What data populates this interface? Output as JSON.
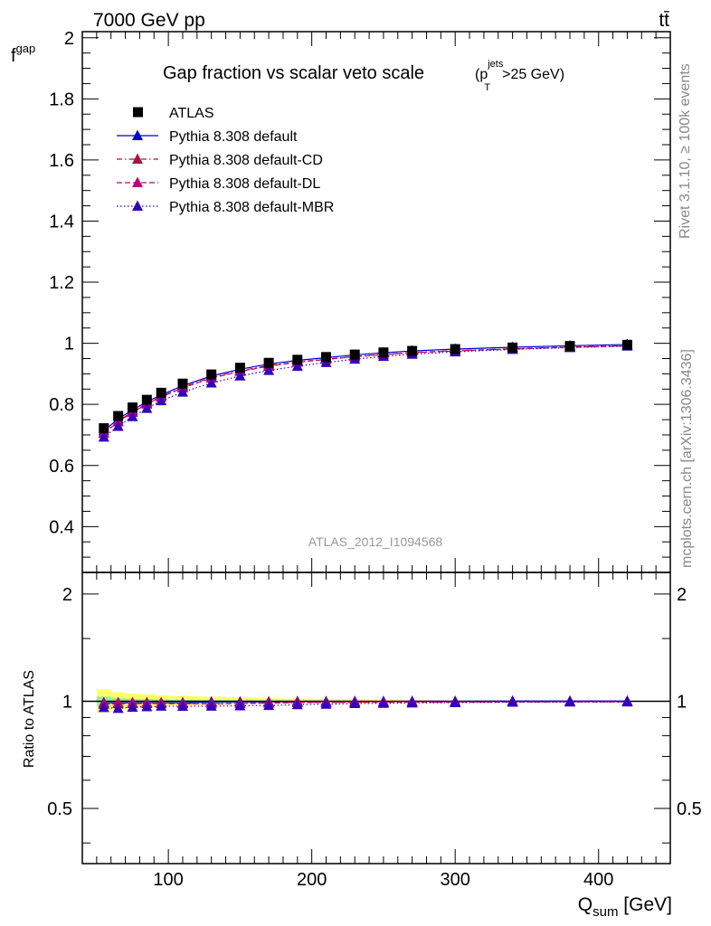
{
  "header": {
    "energy_label": "7000 GeV pp",
    "process_label": "tt̄"
  },
  "side_text": {
    "rivet": "Rivet 3.1.10, ≥ 100k events",
    "source": "mcplots.cern.ch [arXiv:1306.3436]"
  },
  "chart_data": [
    {
      "type": "scatter",
      "panel": "main",
      "title": "Gap fraction vs scalar veto scale",
      "title_suffix": {
        "p": "p",
        "sup": "jets",
        "sub": "T",
        "rest": ">25 GeV)",
        "open": "("
      },
      "ylabel": {
        "main": "f",
        "sub": "gap"
      },
      "xlim": [
        40,
        450
      ],
      "ylim": [
        0.25,
        2.02
      ],
      "yticks": [
        0.4,
        0.6,
        0.8,
        1,
        1.2,
        1.4,
        1.6,
        1.8,
        2
      ],
      "ytick_labels": [
        "0.4",
        "0.6",
        "0.8",
        "1",
        "1.2",
        "1.4",
        "1.6",
        "1.8",
        "2"
      ],
      "watermark": "ATLAS_2012_I1094568",
      "legend_position": "top-left",
      "x": [
        55,
        65,
        75,
        85,
        95,
        110,
        130,
        150,
        170,
        190,
        210,
        230,
        250,
        270,
        300,
        340,
        380,
        420
      ],
      "series": [
        {
          "name": "ATLAS",
          "color": "#000000",
          "marker": "square",
          "line": "none",
          "values": [
            0.722,
            0.762,
            0.79,
            0.815,
            0.838,
            0.868,
            0.898,
            0.92,
            0.936,
            0.946,
            0.955,
            0.963,
            0.97,
            0.975,
            0.981,
            0.986,
            0.991,
            0.995
          ]
        },
        {
          "name": "Pythia 8.308 default",
          "color": "#0000cc",
          "marker": "triangle",
          "line": "solid",
          "values": [
            0.714,
            0.752,
            0.782,
            0.808,
            0.831,
            0.861,
            0.893,
            0.915,
            0.932,
            0.944,
            0.953,
            0.962,
            0.969,
            0.975,
            0.981,
            0.987,
            0.992,
            0.996
          ]
        },
        {
          "name": "Pythia 8.308 default-CD",
          "color": "#aa1144",
          "marker": "triangle",
          "line": "dashdot",
          "values": [
            0.707,
            0.745,
            0.776,
            0.803,
            0.826,
            0.856,
            0.888,
            0.91,
            0.927,
            0.939,
            0.948,
            0.957,
            0.964,
            0.97,
            0.976,
            0.982,
            0.988,
            0.992
          ]
        },
        {
          "name": "Pythia 8.308 default-DL",
          "color": "#bb0077",
          "marker": "triangle",
          "line": "dashed",
          "values": [
            0.705,
            0.743,
            0.774,
            0.801,
            0.824,
            0.854,
            0.886,
            0.908,
            0.925,
            0.938,
            0.947,
            0.956,
            0.963,
            0.969,
            0.975,
            0.981,
            0.987,
            0.991
          ]
        },
        {
          "name": "Pythia 8.308 default-MBR",
          "color": "#3300bb",
          "marker": "triangle",
          "line": "dotted",
          "values": [
            0.693,
            0.728,
            0.76,
            0.787,
            0.812,
            0.84,
            0.87,
            0.893,
            0.911,
            0.925,
            0.937,
            0.948,
            0.957,
            0.964,
            0.972,
            0.98,
            0.986,
            0.991
          ]
        }
      ]
    },
    {
      "type": "scatter",
      "panel": "ratio",
      "ylabel": "Ratio to ATLAS",
      "xlabel": {
        "main": "Q",
        "sub": "sum",
        "unit": " [GeV]"
      },
      "xlim": [
        40,
        450
      ],
      "ylim": [
        0.35,
        2.3
      ],
      "yscale": "log",
      "yticks": [
        0.5,
        1,
        2
      ],
      "ytick_labels": [
        "0.5",
        "1",
        "2"
      ],
      "xticks": [
        100,
        200,
        300,
        400
      ],
      "xtick_labels": [
        "100",
        "200",
        "300",
        "400"
      ],
      "band_color": "#ffff66",
      "band_inner_color": "#99ee99",
      "band": {
        "x": [
          50,
          60,
          70,
          80,
          90,
          100,
          120,
          140,
          160,
          180,
          200,
          220,
          240,
          260,
          280,
          320,
          360,
          400,
          440
        ],
        "outer_lo": [
          0.93,
          0.95,
          0.96,
          0.965,
          0.97,
          0.975,
          0.978,
          0.982,
          0.985,
          0.988,
          0.99,
          0.992,
          0.994,
          0.995,
          0.996,
          0.997,
          0.998,
          0.999
        ],
        "outer_hi": [
          1.08,
          1.06,
          1.05,
          1.045,
          1.04,
          1.035,
          1.03,
          1.025,
          1.02,
          1.017,
          1.014,
          1.012,
          1.01,
          1.008,
          1.006,
          1.004,
          1.003,
          1.002
        ],
        "inner_lo": [
          0.97,
          0.98,
          0.984,
          0.987,
          0.99,
          0.992,
          0.993,
          0.994,
          0.995,
          0.996,
          0.997,
          0.997,
          0.998,
          0.998,
          0.999,
          0.999,
          0.999,
          1.0
        ],
        "inner_hi": [
          1.03,
          1.02,
          1.016,
          1.013,
          1.011,
          1.009,
          1.008,
          1.007,
          1.006,
          1.005,
          1.004,
          1.003,
          1.003,
          1.002,
          1.002,
          1.001,
          1.001,
          1.0
        ]
      },
      "x": [
        55,
        65,
        75,
        85,
        95,
        110,
        130,
        150,
        170,
        190,
        210,
        230,
        250,
        270,
        300,
        340,
        380,
        420
      ],
      "series": [
        {
          "name": "Pythia 8.308 default",
          "color": "#0000cc",
          "marker": "triangle",
          "line": "solid",
          "values": [
            0.99,
            0.99,
            0.99,
            0.99,
            0.99,
            0.99,
            0.995,
            0.995,
            0.996,
            0.998,
            0.998,
            0.999,
            0.999,
            1.0,
            1.0,
            1.001,
            1.001,
            1.001
          ]
        },
        {
          "name": "Pythia 8.308 default-CD",
          "color": "#aa1144",
          "marker": "triangle",
          "line": "dashdot",
          "values": [
            0.985,
            0.99,
            0.99,
            0.99,
            0.99,
            0.987,
            0.985,
            0.985,
            0.99,
            0.993,
            0.993,
            0.994,
            0.995,
            0.995,
            0.995,
            0.996,
            0.997,
            0.997
          ]
        },
        {
          "name": "Pythia 8.308 default-DL",
          "color": "#bb0077",
          "marker": "triangle",
          "line": "dashed",
          "values": [
            0.98,
            0.985,
            0.985,
            0.985,
            0.985,
            0.984,
            0.983,
            0.985,
            0.988,
            0.991,
            0.992,
            0.993,
            0.993,
            0.994,
            0.994,
            0.995,
            0.996,
            0.996
          ]
        },
        {
          "name": "Pythia 8.308 default-MBR",
          "color": "#3300bb",
          "marker": "triangle",
          "line": "dotted",
          "values": [
            0.96,
            0.955,
            0.962,
            0.965,
            0.969,
            0.968,
            0.969,
            0.971,
            0.973,
            0.978,
            0.981,
            0.985,
            0.987,
            0.989,
            0.991,
            0.994,
            0.995,
            0.996
          ]
        }
      ]
    }
  ]
}
